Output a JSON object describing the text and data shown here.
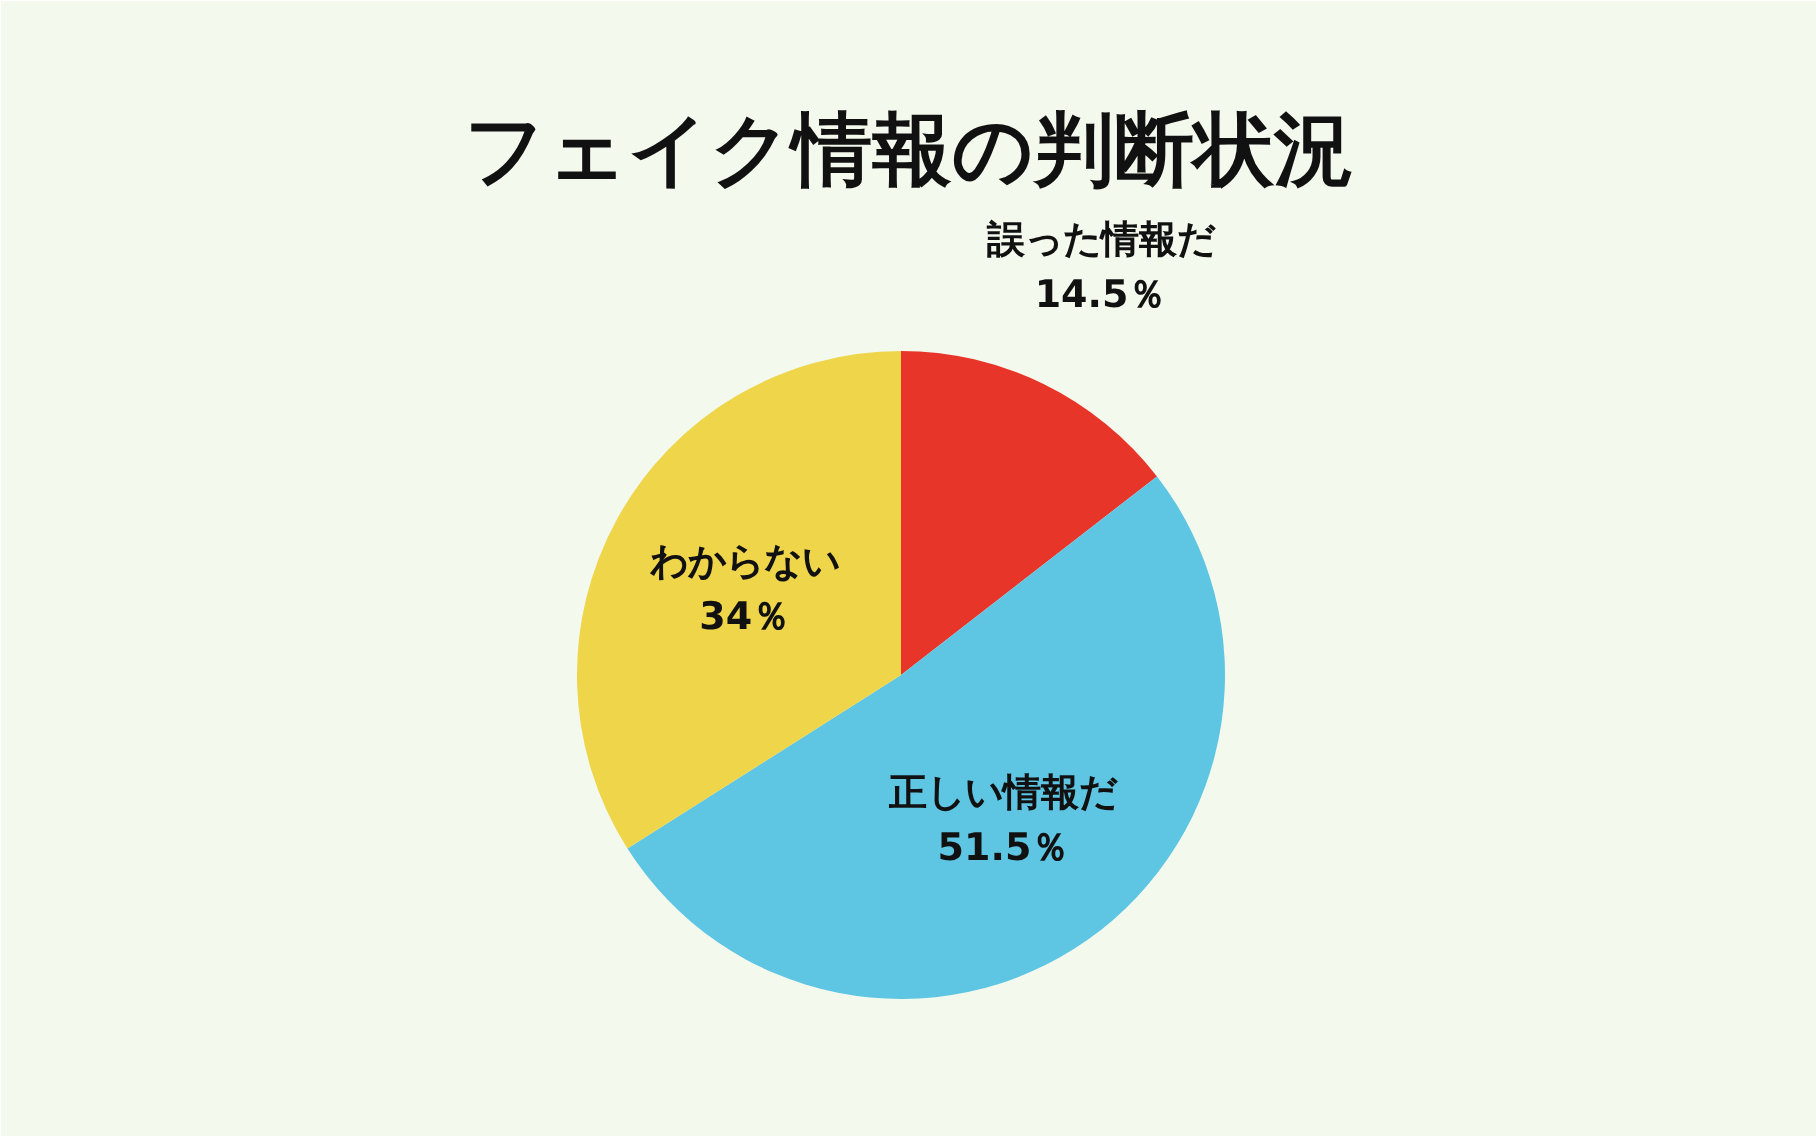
{
  "chart_data": {
    "type": "pie",
    "title": "フェイク情報の判断状況",
    "categories": [
      "誤った情報だ",
      "正しい情報だ",
      "わからない"
    ],
    "values": [
      14.5,
      51.5,
      34
    ],
    "colors": [
      "#e8352a",
      "#5ec6e3",
      "#efd54a"
    ],
    "value_labels": [
      "14.5％",
      "51.5％",
      "34％"
    ]
  }
}
